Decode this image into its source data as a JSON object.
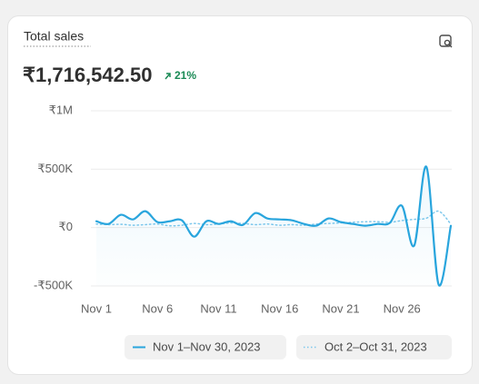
{
  "header": {
    "title": "Total sales",
    "total": "₹1,716,542.50",
    "change": "21%"
  },
  "chart_data": {
    "type": "line",
    "categories": [
      "Nov 1",
      null,
      null,
      null,
      null,
      "Nov 6",
      null,
      null,
      null,
      null,
      "Nov 11",
      null,
      null,
      null,
      null,
      "Nov 16",
      null,
      null,
      null,
      null,
      "Nov 21",
      null,
      null,
      null,
      null,
      "Nov 26",
      null,
      null,
      null,
      null
    ],
    "series": [
      {
        "name": "Nov 1–Nov 30, 2023",
        "color": "#29a5dd",
        "dash": false,
        "values": [
          54000,
          31000,
          109000,
          70000,
          140000,
          47000,
          54000,
          62000,
          -78000,
          54000,
          31000,
          54000,
          23000,
          124000,
          78000,
          70000,
          62000,
          31000,
          16000,
          78000,
          47000,
          31000,
          16000,
          31000,
          39000,
          186000,
          -155000,
          520000,
          -488000,
          15000
        ]
      },
      {
        "name": "Oct 2–Oct 31, 2023",
        "color": "#7fc8ec",
        "dash": true,
        "values": [
          30000,
          25000,
          28000,
          20000,
          25000,
          30000,
          15000,
          20000,
          35000,
          25000,
          30000,
          40000,
          35000,
          25000,
          30000,
          20000,
          25000,
          20000,
          30000,
          35000,
          40000,
          45000,
          50000,
          50000,
          45000,
          60000,
          70000,
          80000,
          140000,
          30000
        ]
      }
    ],
    "ylim": [
      -500000,
      1000000
    ],
    "yticks": [
      {
        "value": 1000000,
        "label": "₹1M"
      },
      {
        "value": 500000,
        "label": "₹500K"
      },
      {
        "value": 0,
        "label": "₹0"
      },
      {
        "value": -500000,
        "label": "-₹500K"
      }
    ],
    "grid": true
  }
}
